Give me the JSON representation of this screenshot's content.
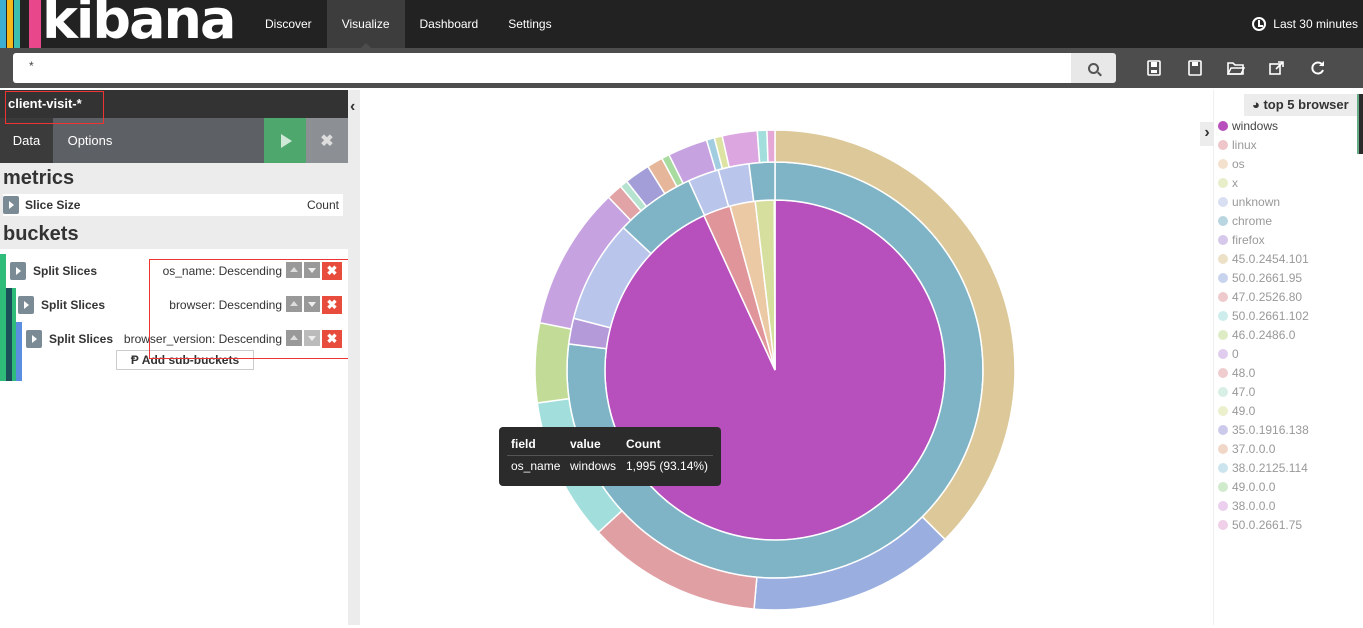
{
  "brand": {
    "name": "kibana",
    "stripe_colors": [
      "#e8488b",
      "#3caed2",
      "#f6b919",
      "#3ebeb0",
      "#e8488b"
    ]
  },
  "nav": {
    "tabs": [
      {
        "label": "Discover",
        "active": false
      },
      {
        "label": "Visualize",
        "active": true
      },
      {
        "label": "Dashboard",
        "active": false
      },
      {
        "label": "Settings",
        "active": false
      }
    ],
    "timepicker": "Last 30 minutes"
  },
  "search": {
    "query": "*",
    "icon": "search-icon"
  },
  "toolbar": {
    "icons": [
      "new-visualization-icon",
      "save-icon",
      "open-icon",
      "share-icon",
      "refresh-icon"
    ]
  },
  "sidebar": {
    "index_pattern": "client-visit-*",
    "tabs": [
      {
        "label": "Data",
        "active": true
      },
      {
        "label": "Options",
        "active": false
      }
    ],
    "metrics": {
      "heading": "metrics",
      "items": [
        {
          "label": "Slice Size",
          "value": "Count"
        }
      ]
    },
    "buckets": {
      "heading": "buckets",
      "items": [
        {
          "label": "Split Slices",
          "description": "os_name: Descending"
        },
        {
          "label": "Split Slices",
          "description": "browser: Descending"
        },
        {
          "label": "Split Slices",
          "description": "browser_version: Descending"
        }
      ],
      "add_label": "Add sub-buckets"
    }
  },
  "legend": {
    "title": "top 5 browser",
    "items": [
      {
        "label": "windows",
        "color": "#b74fbd",
        "active": true
      },
      {
        "label": "linux",
        "color": "#e0959a",
        "active": false
      },
      {
        "label": "os",
        "color": "#ebc9a4",
        "active": false
      },
      {
        "label": "x",
        "color": "#d6df9e",
        "active": false
      },
      {
        "label": "unknown",
        "color": "#b9c5ea",
        "active": false
      },
      {
        "label": "chrome",
        "color": "#7fb4c6",
        "active": false
      },
      {
        "label": "firefox",
        "color": "#b59ad9",
        "active": false
      },
      {
        "label": "45.0.2454.101",
        "color": "#dcc898",
        "active": false
      },
      {
        "label": "50.0.2661.95",
        "color": "#9aafe0",
        "active": false
      },
      {
        "label": "47.0.2526.80",
        "color": "#e09fa3",
        "active": false
      },
      {
        "label": "50.0.2661.102",
        "color": "#a2dfdc",
        "active": false
      },
      {
        "label": "46.0.2486.0",
        "color": "#c2dc98",
        "active": false
      },
      {
        "label": "0",
        "color": "#c7a2e0",
        "active": false
      },
      {
        "label": "48.0",
        "color": "#e1a3a6",
        "active": false
      },
      {
        "label": "47.0",
        "color": "#b6e2d0",
        "active": false
      },
      {
        "label": "49.0",
        "color": "#dde3a2",
        "active": false
      },
      {
        "label": "35.0.1916.138",
        "color": "#a39ed8",
        "active": false
      },
      {
        "label": "37.0.0.0",
        "color": "#e5b69a",
        "active": false
      },
      {
        "label": "38.0.2125.114",
        "color": "#a2cde0",
        "active": false
      },
      {
        "label": "49.0.0.0",
        "color": "#a8dba0",
        "active": false
      },
      {
        "label": "38.0.0.0",
        "color": "#dca6e0",
        "active": false
      },
      {
        "label": "50.0.2661.75",
        "color": "#e4a7d6",
        "active": false
      }
    ]
  },
  "tooltip": {
    "headers": [
      "field",
      "value",
      "Count"
    ],
    "row": [
      "os_name",
      "windows",
      "1,995 (93.14%)"
    ]
  },
  "chart_data": {
    "type": "pie",
    "donut": true,
    "rings": [
      {
        "name": "os_name",
        "slices": [
          {
            "label": "windows",
            "percent": 93.14,
            "color": "#b74fbd"
          },
          {
            "label": "linux",
            "percent": 2.6,
            "color": "#e0959a"
          },
          {
            "label": "os",
            "percent": 2.4,
            "color": "#ebc9a4"
          },
          {
            "label": "x",
            "percent": 1.8,
            "color": "#d6df9e"
          },
          {
            "label": "unknown",
            "percent": 0.06,
            "color": "#b9c5ea"
          }
        ]
      },
      {
        "name": "browser",
        "slices": [
          {
            "label": "chrome",
            "percent": 77.0,
            "color": "#7fb4c6"
          },
          {
            "label": "firefox",
            "percent": 2.0,
            "color": "#b59ad9"
          },
          {
            "label": "unknown",
            "percent": 8.0,
            "color": "#b9c5ea"
          },
          {
            "label": "chrome",
            "percent": 6.2,
            "color": "#7fb4c6"
          },
          {
            "label": "unknown",
            "percent": 2.4,
            "color": "#b9c5ea"
          },
          {
            "label": "unknown",
            "percent": 2.4,
            "color": "#b9c5ea"
          },
          {
            "label": "chrome",
            "percent": 2.0,
            "color": "#7fb4c6"
          }
        ]
      },
      {
        "name": "browser_version",
        "slices": [
          {
            "label": "45.0.2454.101",
            "percent": 35.0,
            "color": "#dcc898"
          },
          {
            "label": "50.0.2661.95",
            "percent": 13.0,
            "color": "#9aafe0"
          },
          {
            "label": "47.0.2526.80",
            "percent": 11.0,
            "color": "#e09fa3"
          },
          {
            "label": "50.0.2661.102",
            "percent": 9.0,
            "color": "#a2dfdc"
          },
          {
            "label": "46.0.2486.0",
            "percent": 5.0,
            "color": "#c2dc98"
          },
          {
            "label": "0",
            "percent": 9.0,
            "color": "#c7a2e0"
          },
          {
            "label": "48.0",
            "percent": 1.0,
            "color": "#e1a3a6"
          },
          {
            "label": "47.0",
            "percent": 0.5,
            "color": "#b6e2d0"
          },
          {
            "label": "35.0.1916.138",
            "percent": 1.6,
            "color": "#a39ed8"
          },
          {
            "label": "37.0.0.0",
            "percent": 1.0,
            "color": "#e5b69a"
          },
          {
            "label": "49.0.0.0",
            "percent": 0.5,
            "color": "#a8dba0"
          },
          {
            "label": "50.0.2661.75",
            "percent": 2.5,
            "color": "#c7a2e0"
          },
          {
            "label": "38.0.2125.114",
            "percent": 0.5,
            "color": "#a2cde0"
          },
          {
            "label": "49.0",
            "percent": 0.5,
            "color": "#dde3a2"
          },
          {
            "label": "38.0.0.0",
            "percent": 2.2,
            "color": "#dca6e0"
          },
          {
            "label": "50.0.2661.102",
            "percent": 0.6,
            "color": "#a2dfdc"
          },
          {
            "label": "50.0.2661.75",
            "percent": 0.5,
            "color": "#e4a7d6"
          }
        ]
      }
    ]
  }
}
